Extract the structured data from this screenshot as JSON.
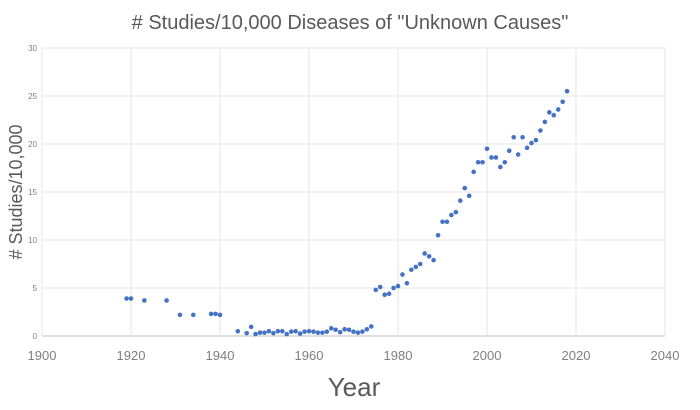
{
  "chart_data": {
    "type": "scatter",
    "title": "# Studies/10,000 Diseases of \"Unknown Causes\"",
    "xlabel": "Year",
    "ylabel": "# Studies/10,000",
    "xlim": [
      1900,
      2040
    ],
    "ylim": [
      0,
      30
    ],
    "xticks": [
      1900,
      1920,
      1940,
      1960,
      1980,
      2000,
      2020,
      2040
    ],
    "yticks": [
      0,
      5,
      10,
      15,
      20,
      25,
      30
    ],
    "grid": true,
    "marker_color": "#4472c4",
    "points": [
      [
        1919,
        3.9
      ],
      [
        1920,
        3.9
      ],
      [
        1923,
        3.7
      ],
      [
        1928,
        3.7
      ],
      [
        1931,
        2.2
      ],
      [
        1934,
        2.2
      ],
      [
        1938,
        2.3
      ],
      [
        1939,
        2.3
      ],
      [
        1940,
        2.2
      ],
      [
        1944,
        0.5
      ],
      [
        1946,
        0.3
      ],
      [
        1947,
        0.95
      ],
      [
        1948,
        0.2
      ],
      [
        1949,
        0.35
      ],
      [
        1950,
        0.35
      ],
      [
        1951,
        0.5
      ],
      [
        1952,
        0.3
      ],
      [
        1953,
        0.5
      ],
      [
        1954,
        0.5
      ],
      [
        1955,
        0.2
      ],
      [
        1956,
        0.45
      ],
      [
        1957,
        0.5
      ],
      [
        1958,
        0.25
      ],
      [
        1959,
        0.45
      ],
      [
        1960,
        0.5
      ],
      [
        1961,
        0.45
      ],
      [
        1962,
        0.35
      ],
      [
        1963,
        0.35
      ],
      [
        1964,
        0.45
      ],
      [
        1965,
        0.8
      ],
      [
        1966,
        0.65
      ],
      [
        1967,
        0.4
      ],
      [
        1968,
        0.7
      ],
      [
        1969,
        0.65
      ],
      [
        1970,
        0.45
      ],
      [
        1971,
        0.35
      ],
      [
        1972,
        0.45
      ],
      [
        1973,
        0.7
      ],
      [
        1974,
        1.0
      ],
      [
        1975,
        4.8
      ],
      [
        1976,
        5.1
      ],
      [
        1977,
        4.3
      ],
      [
        1978,
        4.4
      ],
      [
        1979,
        5.0
      ],
      [
        1980,
        5.2
      ],
      [
        1981,
        6.4
      ],
      [
        1982,
        5.5
      ],
      [
        1983,
        6.9
      ],
      [
        1984,
        7.2
      ],
      [
        1985,
        7.5
      ],
      [
        1986,
        8.6
      ],
      [
        1987,
        8.3
      ],
      [
        1988,
        7.9
      ],
      [
        1989,
        10.5
      ],
      [
        1990,
        11.9
      ],
      [
        1991,
        11.9
      ],
      [
        1992,
        12.6
      ],
      [
        1993,
        12.9
      ],
      [
        1994,
        14.1
      ],
      [
        1995,
        15.4
      ],
      [
        1996,
        14.6
      ],
      [
        1997,
        17.1
      ],
      [
        1998,
        18.1
      ],
      [
        1999,
        18.1
      ],
      [
        2000,
        19.5
      ],
      [
        2001,
        18.6
      ],
      [
        2002,
        18.6
      ],
      [
        2003,
        17.6
      ],
      [
        2004,
        18.1
      ],
      [
        2005,
        19.3
      ],
      [
        2006,
        20.7
      ],
      [
        2007,
        18.9
      ],
      [
        2008,
        20.7
      ],
      [
        2009,
        19.6
      ],
      [
        2010,
        20.1
      ],
      [
        2011,
        20.4
      ],
      [
        2012,
        21.4
      ],
      [
        2013,
        22.3
      ],
      [
        2014,
        23.3
      ],
      [
        2015,
        23.0
      ],
      [
        2016,
        23.6
      ],
      [
        2017,
        24.4
      ],
      [
        2018,
        25.5
      ]
    ]
  }
}
